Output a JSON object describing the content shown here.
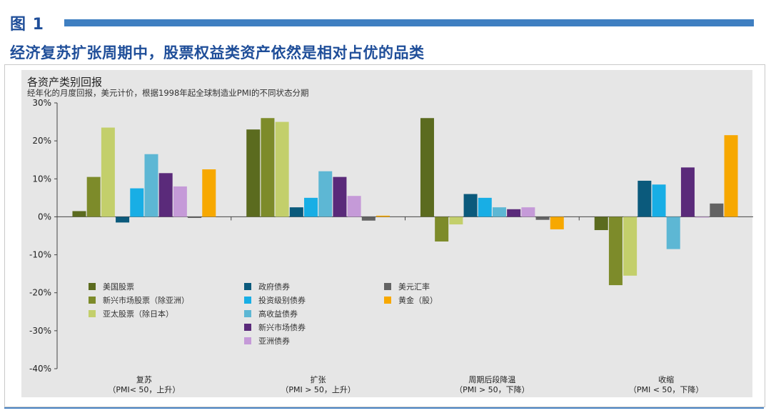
{
  "header": {
    "figure_label": "图 1",
    "title": "经济复苏扩张周期中，股票权益类资产依然是相对占优的品类"
  },
  "chart_data": {
    "type": "bar",
    "title": "各资产类别回报",
    "subtitle": "经年化的月度回报，美元计价，根据1998年起全球制造业PMI的不同状态分期",
    "ylim": [
      -40,
      30
    ],
    "yticks": [
      "30%",
      "20%",
      "10%",
      "0%",
      "-10%",
      "-20%",
      "-30%",
      "-40%"
    ],
    "categories": [
      {
        "name": "复苏",
        "sub": "（PMI< 50，上升）"
      },
      {
        "name": "扩张",
        "sub": "（PMI > 50，上升）"
      },
      {
        "name": "周期后段降温",
        "sub": "（PMI > 50，下降）"
      },
      {
        "name": "收缩",
        "sub": "（PMI < 50，下降）"
      }
    ],
    "series": [
      {
        "name": "美国股票",
        "color": "#5b6b1f",
        "values": [
          1.5,
          23,
          26,
          -3.5
        ]
      },
      {
        "name": "新兴市场股票（除亚洲）",
        "color": "#7d8b2a",
        "values": [
          10.5,
          26,
          -6.5,
          -18
        ]
      },
      {
        "name": "亚太股票（除日本）",
        "color": "#c3cf6b",
        "values": [
          23.5,
          25,
          -2,
          -15.5
        ]
      },
      {
        "name": "政府债券",
        "color": "#0b5a7c",
        "values": [
          -1.5,
          2.5,
          6,
          9.5
        ]
      },
      {
        "name": "投资级别债券",
        "color": "#18aee5",
        "values": [
          7.5,
          5,
          5,
          8.5
        ]
      },
      {
        "name": "高收益债券",
        "color": "#5db7d4",
        "values": [
          16.5,
          12,
          2.5,
          -8.5
        ]
      },
      {
        "name": "新兴市场债券",
        "color": "#5a2a7a",
        "values": [
          11.5,
          10.5,
          2,
          13
        ]
      },
      {
        "name": "亚洲债券",
        "color": "#c59ad8",
        "values": [
          8,
          5.5,
          2.5,
          0
        ]
      },
      {
        "name": "美元汇率",
        "color": "#636363",
        "values": [
          -0.3,
          -1,
          -0.8,
          3.5
        ]
      },
      {
        "name": "黄金（股）",
        "color": "#f7a800",
        "values": [
          12.5,
          0.3,
          -3.3,
          21.5
        ]
      }
    ],
    "grid": false,
    "legend_position": "lower-left"
  }
}
